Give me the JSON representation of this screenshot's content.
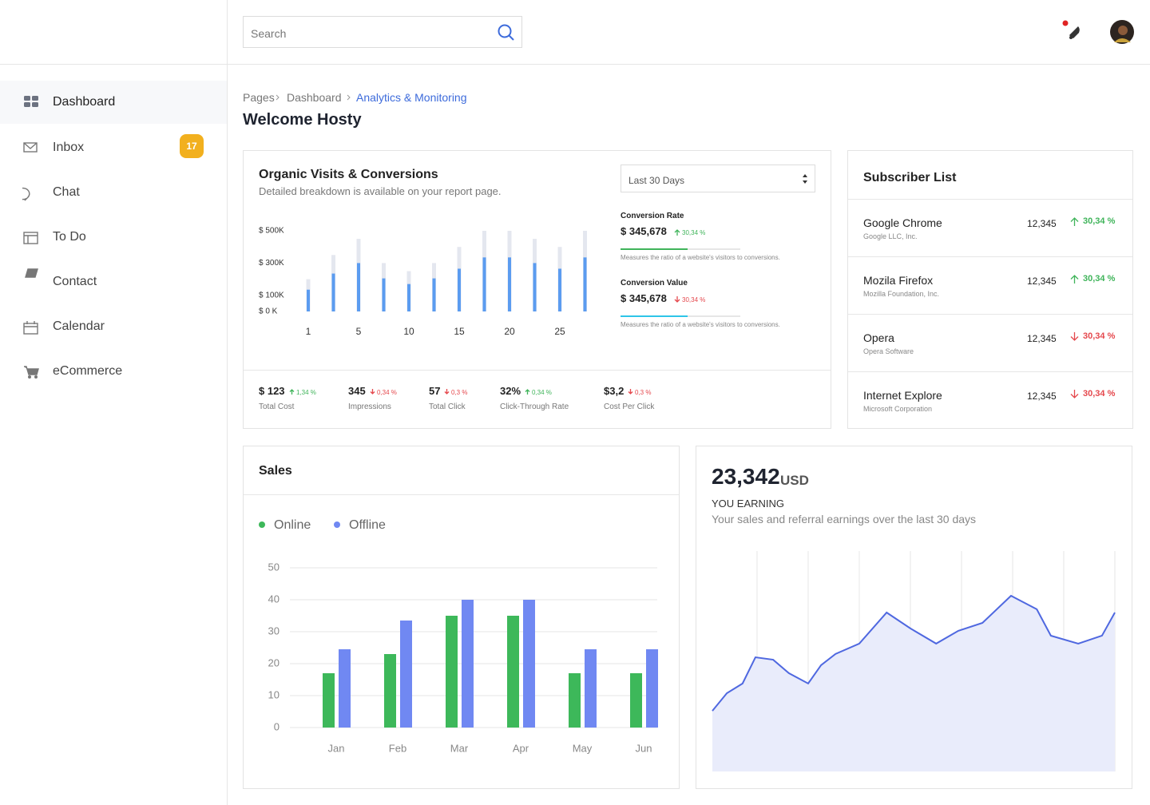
{
  "sidebar": {
    "items": [
      {
        "label": "Dashboard"
      },
      {
        "label": "Inbox",
        "badge": 17
      },
      {
        "label": "Chat"
      },
      {
        "label": "To Do"
      },
      {
        "label": "Contact"
      },
      {
        "label": "Calendar"
      },
      {
        "label": "eCommerce"
      }
    ]
  },
  "header": {
    "search_placeholder": "Search"
  },
  "breadcrumb": [
    "Pages",
    "Dashboard",
    "Analytics & Monitoring"
  ],
  "page_title": "Welcome Hosty",
  "organic": {
    "title": "Organic Visits & Conversions",
    "subtitle": "Detailed breakdown is available on your report page.",
    "range": "Last 30 Days",
    "chart_data": {
      "type": "bar",
      "categories": [
        "1",
        null,
        "5",
        null,
        "10",
        null,
        "15",
        null,
        "20",
        null,
        "25",
        null
      ],
      "series": [
        {
          "color": "#e4e7ef",
          "values": [
            200000,
            350000,
            450000,
            300000,
            250000,
            300000,
            400000,
            500000,
            500000,
            450000,
            400000,
            500000
          ]
        },
        {
          "color": "#5b9cf0",
          "values": [
            135000,
            235000,
            300000,
            205000,
            170000,
            205000,
            265000,
            335000,
            335000,
            300000,
            265000,
            335000
          ]
        }
      ],
      "ylim": [
        0,
        500000
      ],
      "yticks": [
        {
          "value": 500000,
          "label": "$ 500K"
        },
        {
          "value": 300000,
          "label": "$ 300K"
        },
        {
          "value": 100000,
          "label": "$ 100K"
        },
        {
          "value": 0,
          "label": "$ 0 K"
        }
      ]
    },
    "metrics": [
      {
        "label": "Conversion Rate",
        "value": "$ 345,678",
        "change": "30,34 %",
        "trend": "up",
        "bar_color": "#3fb45a",
        "note": "Measures the ratio of a website's visitors to conversions."
      },
      {
        "label": "Conversion Value",
        "value": "$ 345,678",
        "change": "30,34 %",
        "trend": "down",
        "bar_color": "#2ec5e8",
        "note": "Measures the ratio of a website's visitors to conversions."
      }
    ],
    "stats": [
      {
        "value": "$ 123",
        "change": "1,34 %",
        "trend": "up",
        "label": "Total Cost"
      },
      {
        "value": "345",
        "change": "0,34 %",
        "trend": "down",
        "label": "Impressions"
      },
      {
        "value": "57",
        "change": "0,3 %",
        "trend": "down",
        "label": "Total Click"
      },
      {
        "value": "32%",
        "change": "0,34 %",
        "trend": "up",
        "label": "Click-Through Rate"
      },
      {
        "value": "$3,2",
        "change": "0,3 %",
        "trend": "down",
        "label": "Cost Per Click"
      }
    ]
  },
  "subscribers": {
    "title": "Subscriber List",
    "rows": [
      {
        "name": "Google Chrome",
        "company": "Google LLC, Inc.",
        "count": "12,345",
        "change": "30,34 %",
        "trend": "up"
      },
      {
        "name": "Mozila Firefox",
        "company": "Mozilla Foundation, Inc.",
        "count": "12,345",
        "change": "30,34 %",
        "trend": "up"
      },
      {
        "name": "Opera",
        "company": "Opera Software",
        "count": "12,345",
        "change": "30,34 %",
        "trend": "down"
      },
      {
        "name": "Internet Explore",
        "company": "Microsoft Corporation",
        "count": "12,345",
        "change": "30,34 %",
        "trend": "down"
      }
    ]
  },
  "sales": {
    "title": "Sales",
    "chart_data": {
      "type": "bar",
      "categories": [
        "Jan",
        "Feb",
        "Mar",
        "Apr",
        "May",
        "Jun"
      ],
      "series": [
        {
          "name": "Online",
          "color": "#3db85a",
          "values": [
            17,
            23,
            35,
            35,
            17,
            17
          ]
        },
        {
          "name": "Offline",
          "color": "#7088f2",
          "values": [
            24.5,
            33.5,
            40,
            40,
            24.5,
            24.5
          ]
        }
      ],
      "ylim": [
        0,
        50
      ],
      "yticks": [
        0,
        10,
        20,
        30,
        40,
        50
      ],
      "grid": true
    }
  },
  "earning": {
    "amount": "23,342",
    "unit": "USD",
    "label": "YOU EARNING",
    "subtitle": "Your sales and referral earnings over the last 30 days",
    "chart_data": {
      "type": "area",
      "x": [
        0,
        3.6,
        7.5,
        10.7,
        15.1,
        19,
        23.8,
        27,
        30.6,
        36.5,
        43.3,
        49.2,
        55.6,
        61.1,
        67.1,
        74.2,
        80.6,
        84.1,
        90.9,
        96.8,
        100
      ],
      "values": [
        27.5,
        35.5,
        39.9,
        51.8,
        50.7,
        44.6,
        39.9,
        48.2,
        53.3,
        58,
        72.1,
        64.9,
        58,
        63.8,
        67.4,
        79.7,
        73.6,
        61.6,
        58,
        61.6,
        72.1
      ],
      "xlim": [
        0,
        100
      ],
      "ylim": [
        0,
        100
      ],
      "xticks": [
        11.1,
        23.8,
        36.5,
        49.2,
        61.9,
        74.6,
        87.3,
        100
      ],
      "grid": true,
      "color": "#4f68e0",
      "fill": "#e9ecfb"
    }
  }
}
